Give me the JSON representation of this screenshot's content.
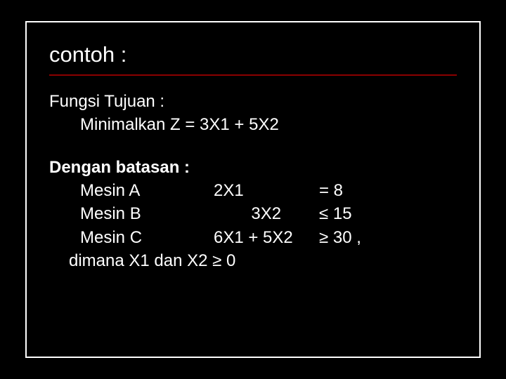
{
  "slide": {
    "background_color": "#000000",
    "card_border_color": "#ffffff",
    "underline_color": "#8b0000",
    "text_color": "#ffffff",
    "title_fontsize": 31,
    "body_fontsize": 24,
    "title": "contoh :",
    "objective": {
      "label": "Fungsi Tujuan :",
      "equation": "Minimalkan Z = 3X1 + 5X2"
    },
    "constraints": {
      "heading": "Dengan batasan :",
      "rows": [
        {
          "label": "Mesin A",
          "expr": "2X1",
          "op": "= 8"
        },
        {
          "label": "Mesin B",
          "expr": "        3X2",
          "op": "≤ 15"
        },
        {
          "label": "Mesin C",
          "expr": "6X1 + 5X2",
          "op": "≥ 30 ,"
        }
      ],
      "nonneg": "dimana X1 dan X2 ≥ 0"
    }
  }
}
